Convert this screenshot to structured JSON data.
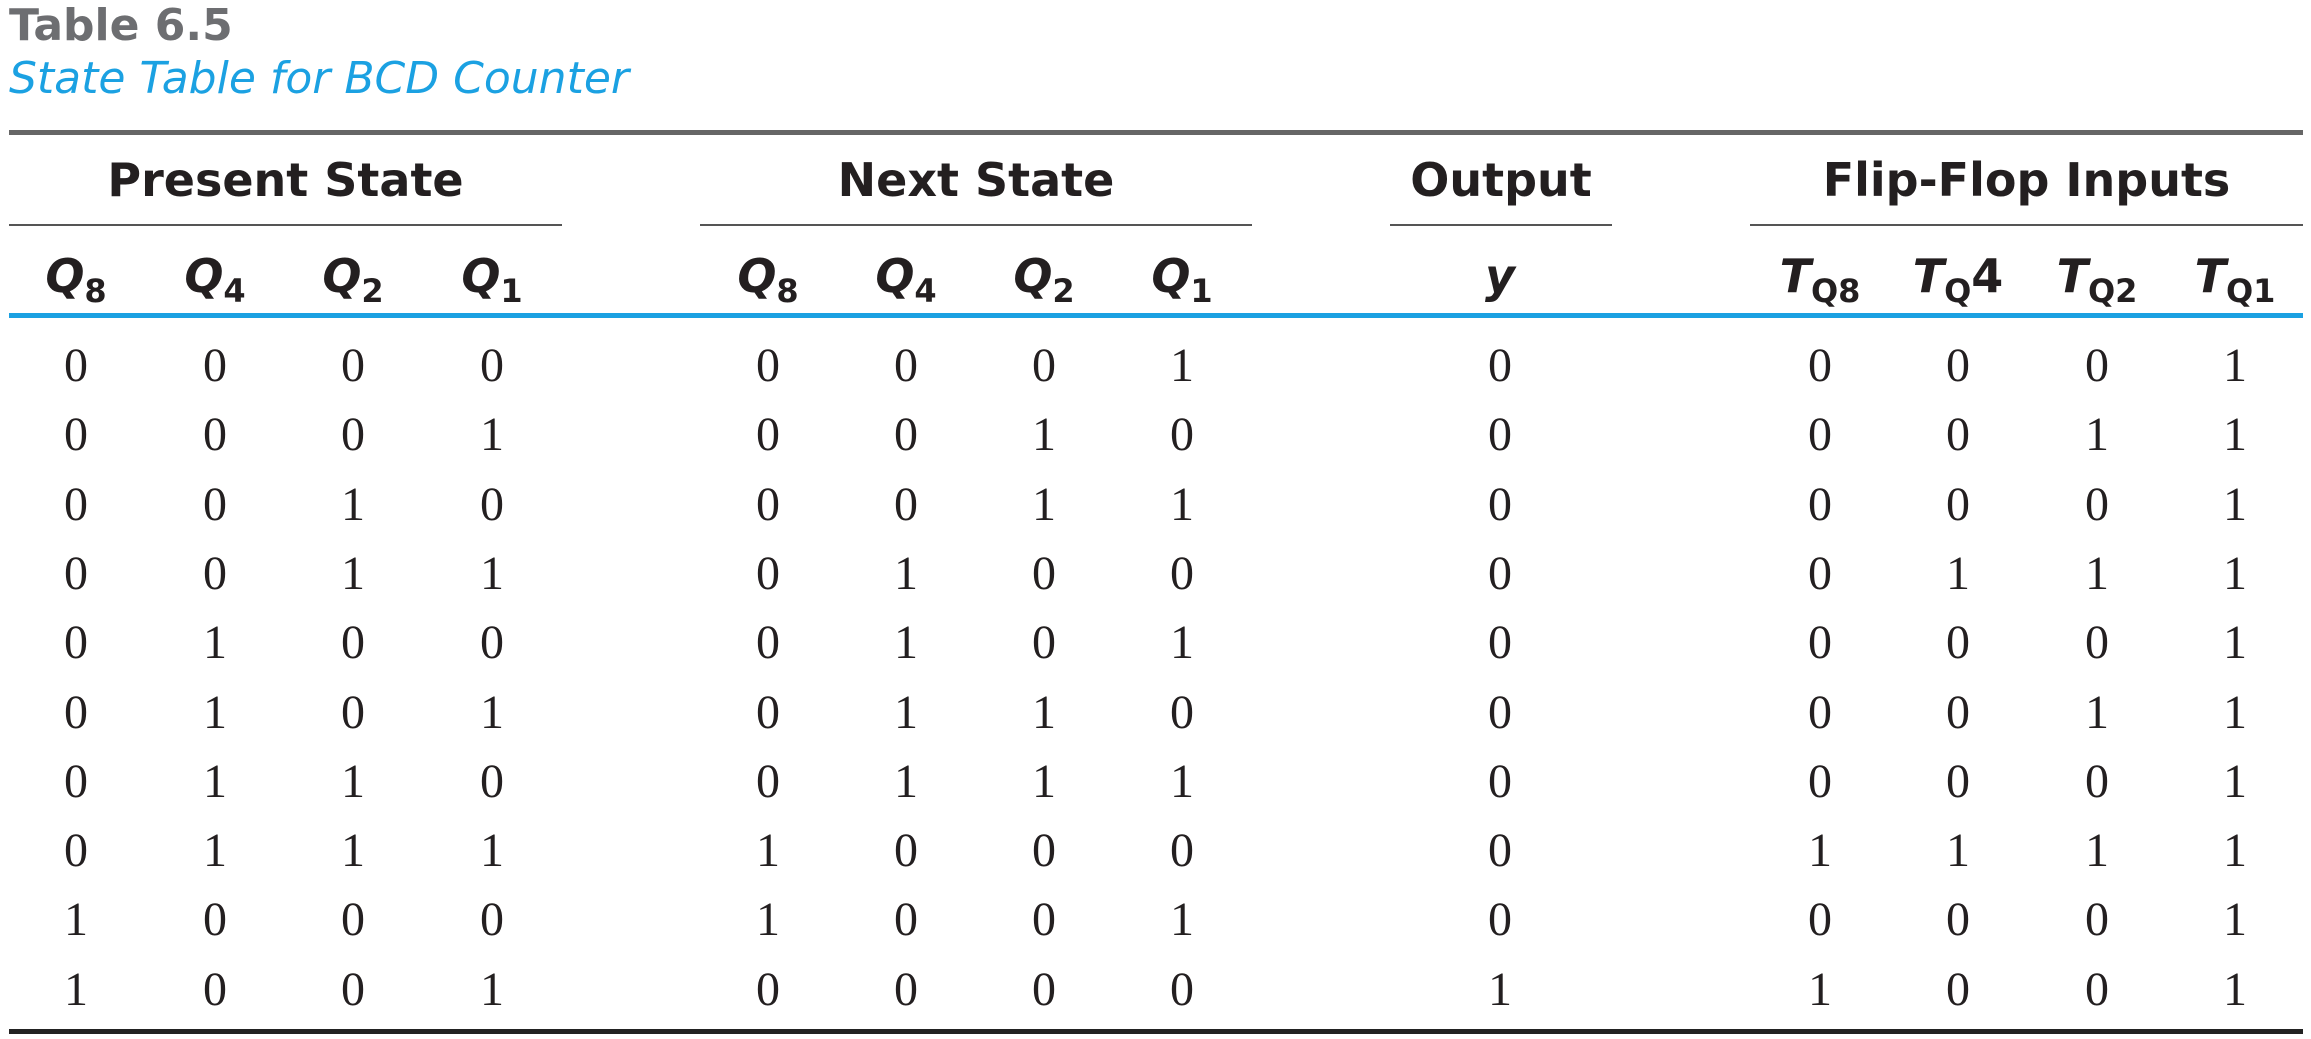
{
  "table_number": "Table 6.5",
  "caption": "State Table for BCD Counter",
  "groups": {
    "present": "Present State",
    "next": "Next State",
    "output": "Output",
    "flipflop": "Flip-Flop Inputs"
  },
  "columns": [
    {
      "main": "Q",
      "sub": "8",
      "post": ""
    },
    {
      "main": "Q",
      "sub": "4",
      "post": ""
    },
    {
      "main": "Q",
      "sub": "2",
      "post": ""
    },
    {
      "main": "Q",
      "sub": "1",
      "post": ""
    },
    {
      "main": "Q",
      "sub": "8",
      "post": ""
    },
    {
      "main": "Q",
      "sub": "4",
      "post": ""
    },
    {
      "main": "Q",
      "sub": "2",
      "post": ""
    },
    {
      "main": "Q",
      "sub": "1",
      "post": ""
    },
    {
      "main": "y",
      "sub": "",
      "post": ""
    },
    {
      "main": "T",
      "sub": "Q8",
      "post": ""
    },
    {
      "main": "T",
      "sub": "Q",
      "post": "4"
    },
    {
      "main": "T",
      "sub": "Q2",
      "post": ""
    },
    {
      "main": "T",
      "sub": "Q1",
      "post": ""
    }
  ],
  "rows": [
    [
      "0",
      "0",
      "0",
      "0",
      "0",
      "0",
      "0",
      "1",
      "0",
      "0",
      "0",
      "0",
      "1"
    ],
    [
      "0",
      "0",
      "0",
      "1",
      "0",
      "0",
      "1",
      "0",
      "0",
      "0",
      "0",
      "1",
      "1"
    ],
    [
      "0",
      "0",
      "1",
      "0",
      "0",
      "0",
      "1",
      "1",
      "0",
      "0",
      "0",
      "0",
      "1"
    ],
    [
      "0",
      "0",
      "1",
      "1",
      "0",
      "1",
      "0",
      "0",
      "0",
      "0",
      "1",
      "1",
      "1"
    ],
    [
      "0",
      "1",
      "0",
      "0",
      "0",
      "1",
      "0",
      "1",
      "0",
      "0",
      "0",
      "0",
      "1"
    ],
    [
      "0",
      "1",
      "0",
      "1",
      "0",
      "1",
      "1",
      "0",
      "0",
      "0",
      "0",
      "1",
      "1"
    ],
    [
      "0",
      "1",
      "1",
      "0",
      "0",
      "1",
      "1",
      "1",
      "0",
      "0",
      "0",
      "0",
      "1"
    ],
    [
      "0",
      "1",
      "1",
      "1",
      "1",
      "0",
      "0",
      "0",
      "0",
      "1",
      "1",
      "1",
      "1"
    ],
    [
      "1",
      "0",
      "0",
      "0",
      "1",
      "0",
      "0",
      "1",
      "0",
      "0",
      "0",
      "0",
      "1"
    ],
    [
      "1",
      "0",
      "0",
      "1",
      "0",
      "0",
      "0",
      "0",
      "1",
      "1",
      "0",
      "0",
      "1"
    ]
  ],
  "colors": {
    "caption": "#1ba1e2",
    "table_number": "#6d6e71",
    "header_rule": "#1ba1e2",
    "text": "#231f20"
  }
}
